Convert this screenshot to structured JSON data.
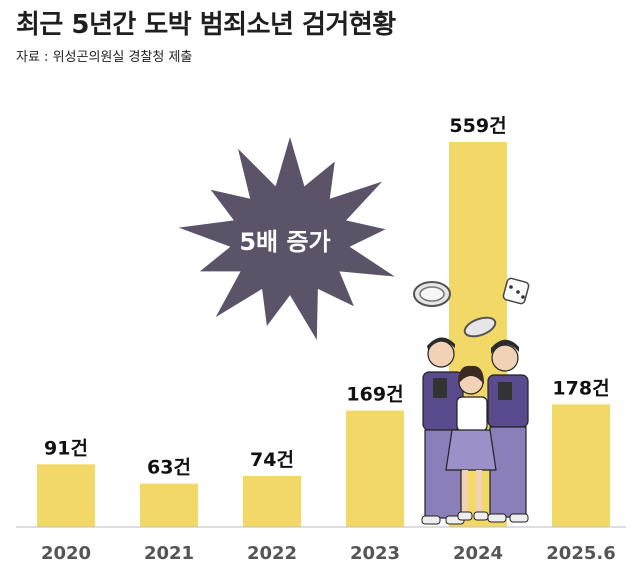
{
  "header": {
    "title": "최근 5년간 도박 범죄소년 검거현황",
    "source": "자료 : 위성곤의원실 경찰청 제출"
  },
  "callout": {
    "text": "5배 증가",
    "color": "#5b5468"
  },
  "chart_data": {
    "type": "bar",
    "categories": [
      "2020",
      "2021",
      "2022",
      "2023",
      "2024",
      "2025.6"
    ],
    "values": [
      91,
      63,
      74,
      169,
      559,
      178
    ],
    "value_labels": [
      "91건",
      "63건",
      "74건",
      "169건",
      "559건",
      "178건"
    ],
    "title": "최근 5년간 도박 범죄소년 검거현황",
    "xlabel": "",
    "ylabel": "",
    "ylim": [
      0,
      559
    ],
    "grid": false,
    "bar_color": "#f2d867"
  }
}
